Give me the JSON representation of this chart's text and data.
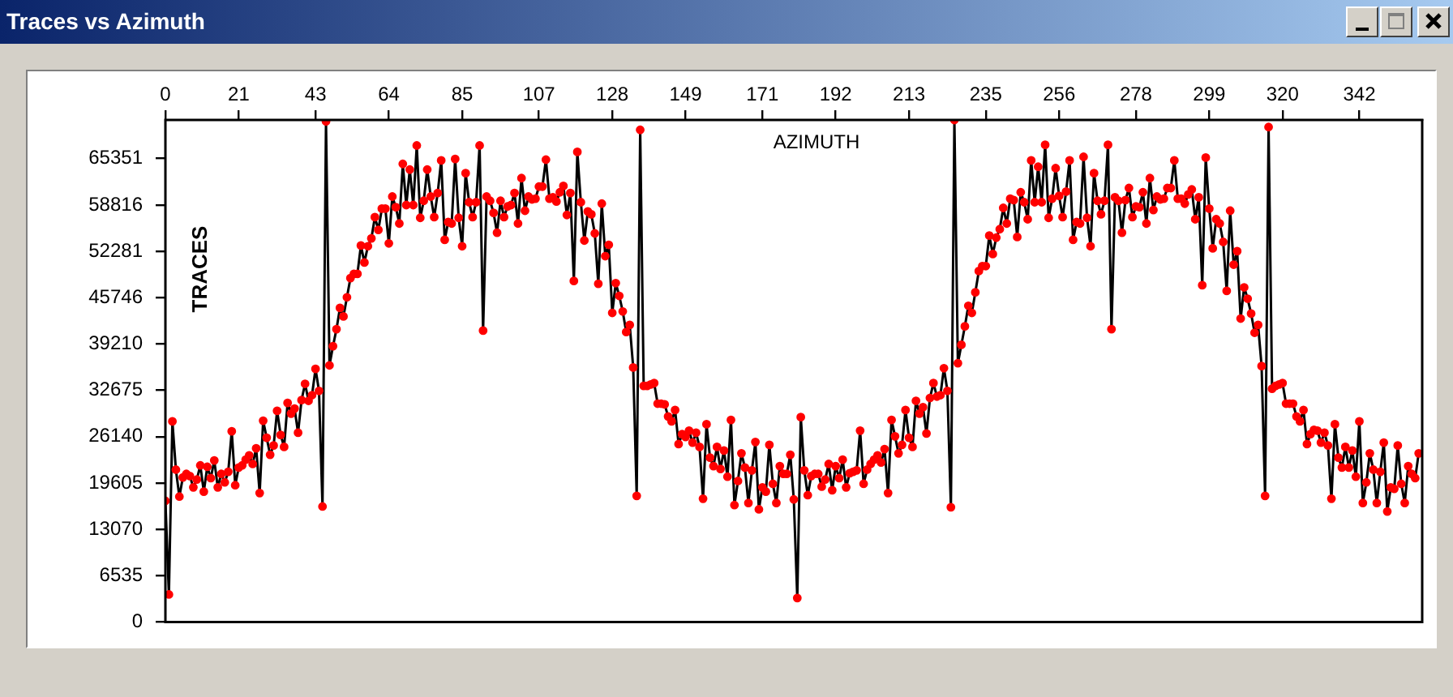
{
  "chart_data": {
    "type": "line",
    "title": "Traces vs Azimuth",
    "xlabel": "AZIMUTH",
    "ylabel": "TRACES",
    "xlim": [
      0,
      360
    ],
    "ylim": [
      0,
      70800
    ],
    "xticks": [
      0,
      21,
      43,
      64,
      85,
      107,
      128,
      149,
      171,
      192,
      213,
      235,
      256,
      278,
      299,
      320,
      342
    ],
    "yticks": [
      0,
      6535,
      13070,
      19605,
      26140,
      32675,
      39210,
      45746,
      52281,
      58816,
      65351
    ],
    "grid": false,
    "legend": false,
    "marker": "circle",
    "line_style": "solid",
    "x": [
      0,
      1,
      2,
      3,
      4,
      5,
      6,
      7,
      8,
      9,
      10,
      11,
      12,
      13,
      14,
      15,
      16,
      17,
      18,
      19,
      20,
      21,
      22,
      23,
      24,
      25,
      26,
      27,
      28,
      29,
      30,
      31,
      32,
      33,
      34,
      35,
      36,
      37,
      38,
      39,
      40,
      41,
      42,
      43,
      44,
      45,
      46,
      47,
      48,
      49,
      50,
      51,
      52,
      53,
      54,
      55,
      56,
      57,
      58,
      59,
      60,
      61,
      62,
      63,
      64,
      65,
      66,
      67,
      68,
      69,
      70,
      71,
      72,
      73,
      74,
      75,
      76,
      77,
      78,
      79,
      80,
      81,
      82,
      83,
      84,
      85,
      86,
      87,
      88,
      89,
      90,
      91,
      92,
      93,
      94,
      95,
      96,
      97,
      98,
      99,
      100,
      101,
      102,
      103,
      104,
      105,
      106,
      107,
      108,
      109,
      110,
      111,
      112,
      113,
      114,
      115,
      116,
      117,
      118,
      119,
      120,
      121,
      122,
      123,
      124,
      125,
      126,
      127,
      128,
      129,
      130,
      131,
      132,
      133,
      134,
      135,
      136,
      137,
      138,
      139,
      140,
      141,
      142,
      143,
      144,
      145,
      146,
      147,
      148,
      149,
      150,
      151,
      152,
      153,
      154,
      155,
      156,
      157,
      158,
      159,
      160,
      161,
      162,
      163,
      164,
      165,
      166,
      167,
      168,
      169,
      170,
      171,
      172,
      173,
      174,
      175,
      176,
      177,
      178,
      179,
      180,
      181,
      182,
      183,
      184,
      185,
      186,
      187,
      188,
      189,
      190,
      191,
      192,
      193,
      194,
      195,
      196,
      197,
      198,
      199,
      200,
      201,
      202,
      203,
      204,
      205,
      206,
      207,
      208,
      209,
      210,
      211,
      212,
      213,
      214,
      215,
      216,
      217,
      218,
      219,
      220,
      221,
      222,
      223,
      224,
      225,
      226,
      227,
      228,
      229,
      230,
      231,
      232,
      233,
      234,
      235,
      236,
      237,
      238,
      239,
      240,
      241,
      242,
      243,
      244,
      245,
      246,
      247,
      248,
      249,
      250,
      251,
      252,
      253,
      254,
      255,
      256,
      257,
      258,
      259,
      260,
      261,
      262,
      263,
      264,
      265,
      266,
      267,
      268,
      269,
      270,
      271,
      272,
      273,
      274,
      275,
      276,
      277,
      278,
      279,
      280,
      281,
      282,
      283,
      284,
      285,
      286,
      287,
      288,
      289,
      290,
      291,
      292,
      293,
      294,
      295,
      296,
      297,
      298,
      299,
      300,
      301,
      302,
      303,
      304,
      305,
      306,
      307,
      308,
      309,
      310,
      311,
      312,
      313,
      314,
      315,
      316,
      317,
      318,
      319,
      320,
      321,
      322,
      323,
      324,
      325,
      326,
      327,
      328,
      329,
      330,
      331,
      332,
      333,
      334,
      335,
      336,
      337,
      338,
      339,
      340,
      341,
      342,
      343,
      344,
      345,
      346,
      347,
      348,
      349,
      350,
      351,
      352,
      353,
      354,
      355,
      356,
      357,
      358,
      359
    ],
    "series": [
      {
        "color": "#ff0000",
        "values": [
          17100,
          3900,
          28300,
          21500,
          17700,
          20400,
          20900,
          20600,
          19000,
          20100,
          22100,
          18400,
          21900,
          20300,
          22800,
          19000,
          20900,
          19700,
          21200,
          26900,
          19300,
          21800,
          22100,
          22900,
          23500,
          22300,
          24500,
          18200,
          28400,
          26000,
          23600,
          24900,
          29800,
          26400,
          24700,
          30900,
          29400,
          30100,
          26700,
          31300,
          33600,
          31200,
          32000,
          35700,
          32600,
          16300,
          70600,
          36200,
          38900,
          41300,
          44300,
          43100,
          45800,
          48500,
          49100,
          49100,
          53100,
          50700,
          53000,
          54100,
          57100,
          55300,
          58300,
          58300,
          53400,
          60000,
          58500,
          56200,
          64600,
          58800,
          63800,
          58800,
          67200,
          57000,
          59400,
          63800,
          60000,
          57100,
          60500,
          65100,
          53900,
          56400,
          56200,
          65300,
          57000,
          53000,
          63300,
          59200,
          57100,
          59200,
          67200,
          41100,
          60000,
          59400,
          57700,
          54900,
          59400,
          57100,
          58600,
          58800,
          60500,
          56200,
          62600,
          58000,
          60000,
          59600,
          59700,
          61400,
          61400,
          65200,
          59700,
          59900,
          59300,
          60600,
          61500,
          57400,
          60500,
          48100,
          66300,
          59200,
          53800,
          57900,
          57500,
          54800,
          47700,
          59000,
          51600,
          53200,
          43600,
          47800,
          46000,
          43800,
          40900,
          41900,
          35900,
          17800,
          69400,
          33300,
          33300,
          33500,
          33700,
          30800,
          30800,
          30700,
          29000,
          28300,
          29900,
          25100,
          26500,
          26100,
          27000,
          25300,
          26700,
          24700,
          17400,
          27900,
          23200,
          22000,
          24700,
          21600,
          24200,
          20500,
          28500,
          16500,
          19900,
          23800,
          21800,
          16800,
          21400,
          25400,
          15900,
          19000,
          18400,
          25000,
          19500,
          16800,
          22000,
          20900,
          20900,
          23600,
          17300,
          3400,
          28900,
          21400,
          17900,
          20600,
          20900,
          20900,
          19100,
          20100,
          22300,
          18600,
          22000,
          20300,
          22900,
          19000,
          21000,
          21200,
          21400,
          27000,
          19500,
          21500,
          22300,
          22900,
          23500,
          22500,
          24400,
          18200,
          28500,
          26200,
          23800,
          25000,
          29900,
          26000,
          24700,
          31200,
          29400,
          30300,
          26600,
          31600,
          33700,
          31800,
          32000,
          35800,
          32600,
          16200,
          70800,
          36500,
          39100,
          41700,
          44600,
          43600,
          46500,
          49500,
          50200,
          50200,
          54500,
          51900,
          54200,
          55400,
          58400,
          56200,
          59700,
          59500,
          54300,
          60600,
          59200,
          56800,
          65100,
          59200,
          64200,
          59200,
          67300,
          57000,
          59700,
          64000,
          60100,
          57100,
          60700,
          65100,
          53900,
          56400,
          56200,
          65600,
          57000,
          53000,
          63300,
          59400,
          57500,
          59400,
          67300,
          41300,
          59900,
          59400,
          54900,
          59500,
          61200,
          57100,
          58600,
          58500,
          60600,
          56200,
          62600,
          58100,
          60000,
          59600,
          59700,
          61200,
          61200,
          65100,
          59700,
          59700,
          59000,
          60300,
          61000,
          56800,
          59900,
          47500,
          65500,
          58300,
          52700,
          56800,
          56200,
          53600,
          46700,
          58000,
          50400,
          52300,
          42800,
          47200,
          45600,
          43500,
          40800,
          41900,
          36100,
          17800,
          69800,
          32900,
          33300,
          33500,
          33700,
          30800,
          30800,
          30800,
          29000,
          28300,
          29900,
          25100,
          26500,
          27100,
          27000,
          25300,
          26700,
          24900,
          17400,
          27900,
          23200,
          21800,
          24700,
          21800,
          24200,
          20500,
          28300,
          16800,
          19700,
          23800,
          21500,
          16800,
          21200,
          25300,
          15600,
          19000,
          18800,
          24900,
          19500,
          16800,
          22000,
          20900,
          20300,
          23800
        ]
      }
    ]
  }
}
